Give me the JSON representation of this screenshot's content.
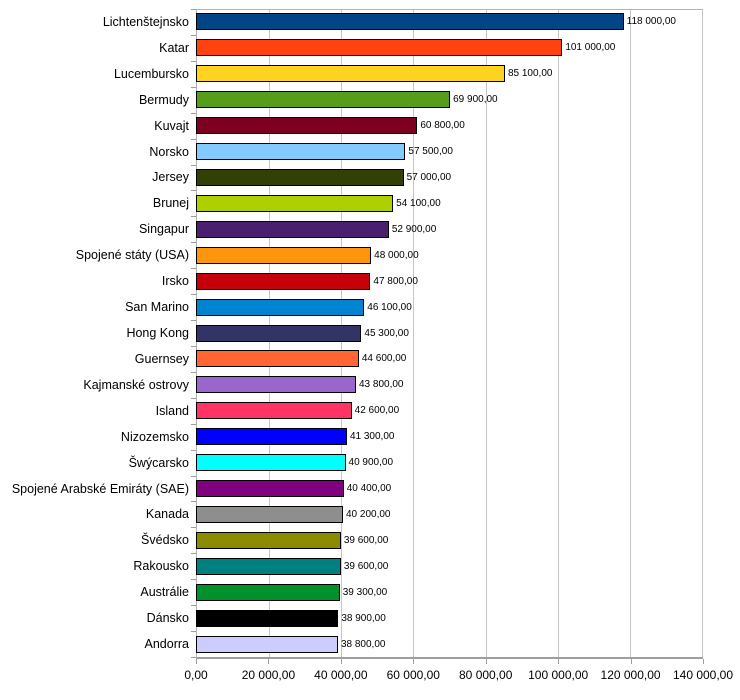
{
  "chart_data": {
    "type": "bar",
    "orientation": "horizontal",
    "title": "",
    "xlabel": "",
    "ylabel": "",
    "xlim": [
      0,
      140000
    ],
    "grid": true,
    "legend": false,
    "x_tick_labels": [
      "0,00",
      "20 000,00",
      "40 000,00",
      "60 000,00",
      "80 000,00",
      "100 000,00",
      "120 000,00",
      "140 000,00"
    ],
    "categories": [
      "Lichtenštejnsko",
      "Katar",
      "Lucembursko",
      "Bermudy",
      "Kuvajt",
      "Norsko",
      "Jersey",
      "Brunej",
      "Singapur",
      "Spojené státy (USA)",
      "Irsko",
      "San Marino",
      "Hong Kong",
      "Guernsey",
      "Kajmanské ostrovy",
      "Island",
      "Nizozemsko",
      "Šwýcarsko",
      "Spojené Arabské Emiráty (SAE)",
      "Kanada",
      "Švédsko",
      "Rakousko",
      "Austrálie",
      "Dánsko",
      "Andorra"
    ],
    "values": [
      118000,
      101000,
      85100,
      69900,
      60800,
      57500,
      57000,
      54100,
      52900,
      48000,
      47800,
      46100,
      45300,
      44600,
      43800,
      42600,
      41300,
      40900,
      40400,
      40200,
      39600,
      39600,
      39300,
      38900,
      38800
    ],
    "value_labels": [
      "118 000,00",
      "101 000,00",
      "85 100,00",
      "69 900,00",
      "60 800,00",
      "57 500,00",
      "57 000,00",
      "54 100,00",
      "52 900,00",
      "48 000,00",
      "47 800,00",
      "46 100,00",
      "45 300,00",
      "44 600,00",
      "43 800,00",
      "42 600,00",
      "41 300,00",
      "40 900,00",
      "40 400,00",
      "40 200,00",
      "39 600,00",
      "39 600,00",
      "39 300,00",
      "38 900,00",
      "38 800,00"
    ],
    "bar_colors": [
      "#004586",
      "#FF420E",
      "#FFD320",
      "#579D1C",
      "#7E0021",
      "#83CAFF",
      "#314004",
      "#AECF00",
      "#4B1F6F",
      "#FF950E",
      "#C5000B",
      "#0084D1",
      "#333366",
      "#FF6633",
      "#9966CC",
      "#FF3366",
      "#0000FF",
      "#00FFFF",
      "#800080",
      "#8E8E8E",
      "#8B8B00",
      "#008080",
      "#00912C",
      "#000000",
      "#CCCCFF"
    ]
  },
  "colors": {
    "background": "#FFFFFF",
    "gridline": "#C5C5C5",
    "plot_border": "#B3B3B3",
    "axis_line": "#9E9E9E",
    "bar_border": "#000000",
    "text": "#000000"
  }
}
